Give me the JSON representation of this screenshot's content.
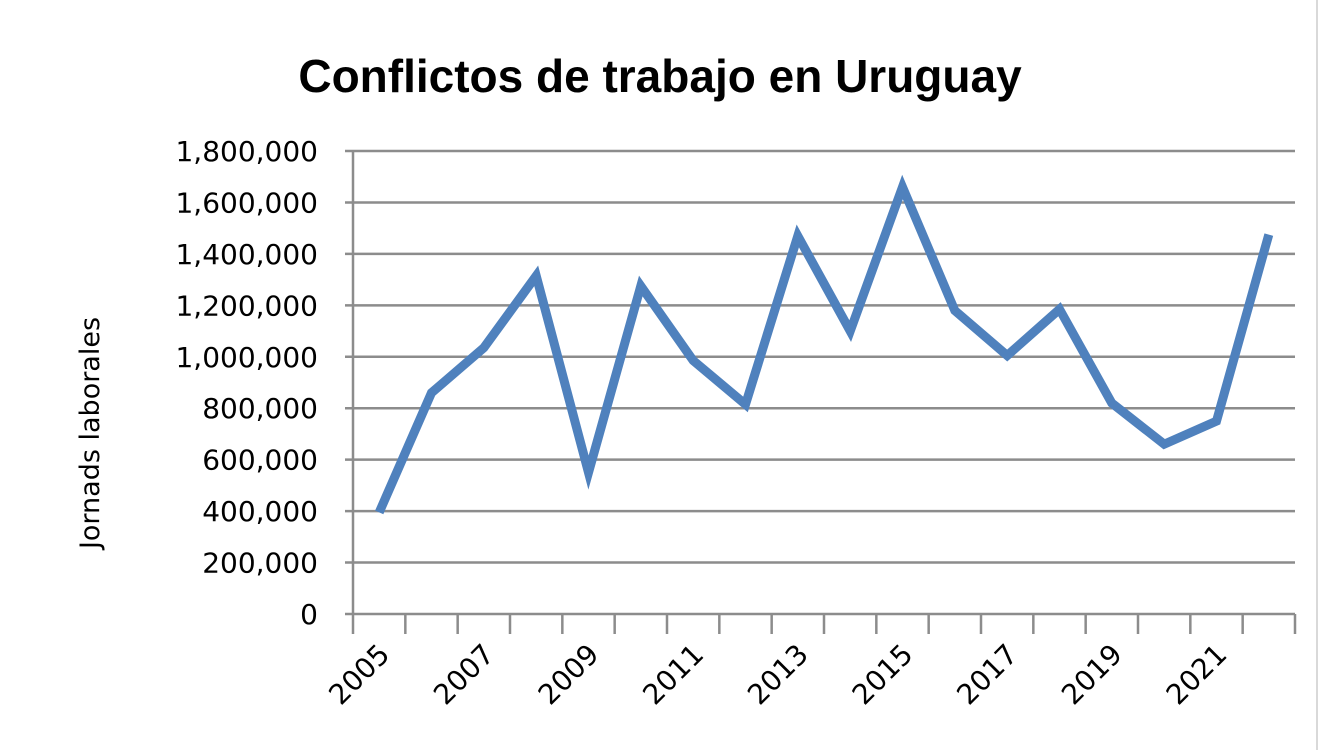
{
  "chart_data": {
    "type": "line",
    "title": "Conflictos de trabajo en Uruguay",
    "xlabel": "",
    "ylabel": "Jornads laborales",
    "ylim": [
      0,
      1800000
    ],
    "yticks": [
      "0",
      "200,000",
      "400,000",
      "600,000",
      "800,000",
      "1,000,000",
      "1,200,000",
      "1,400,000",
      "1,600,000",
      "1,800,000"
    ],
    "ytick_values": [
      0,
      200000,
      400000,
      600000,
      800000,
      1000000,
      1200000,
      1400000,
      1600000,
      1800000
    ],
    "xtick_labels": [
      "2005",
      "2007",
      "2009",
      "2011",
      "2013",
      "2015",
      "2017",
      "2019",
      "2021"
    ],
    "grid": true,
    "legend": "none",
    "categories": [
      "2005",
      "2006",
      "2007",
      "2008",
      "2009",
      "2010",
      "2011",
      "2012",
      "2013",
      "2014",
      "2015",
      "2016",
      "2017",
      "2018",
      "2019",
      "2020",
      "2021",
      "2022"
    ],
    "series": [
      {
        "name": "",
        "color": "#4f81bd",
        "values": [
          395000,
          860000,
          1035000,
          1315000,
          550000,
          1275000,
          985000,
          815000,
          1470000,
          1100000,
          1660000,
          1180000,
          1005000,
          1185000,
          820000,
          660000,
          750000,
          1475000
        ]
      }
    ]
  }
}
